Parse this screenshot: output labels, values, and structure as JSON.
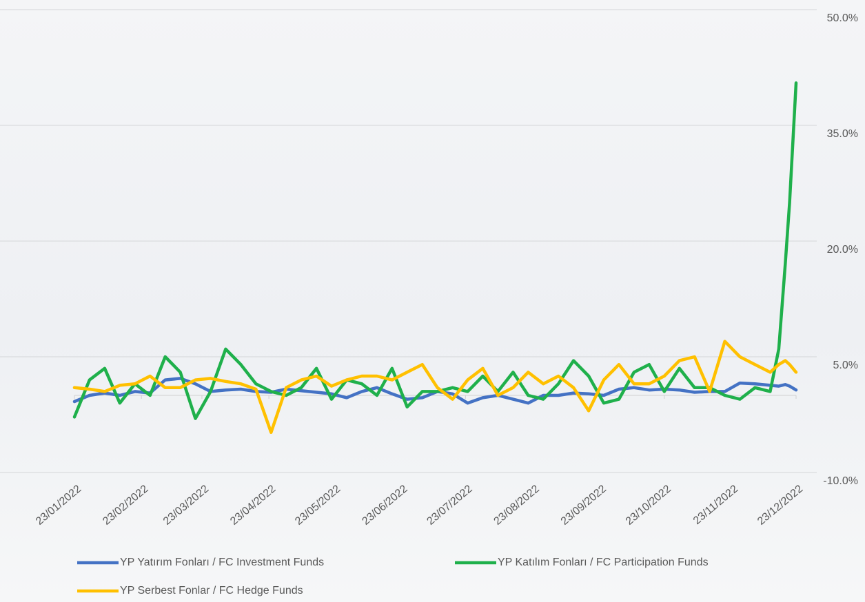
{
  "chart_data": {
    "type": "line",
    "x": [
      "23/01/2022",
      "30/01/2022",
      "06/02/2022",
      "13/02/2022",
      "20/02/2022",
      "27/02/2022",
      "06/03/2022",
      "13/03/2022",
      "20/03/2022",
      "27/03/2022",
      "03/04/2022",
      "10/04/2022",
      "17/04/2022",
      "24/04/2022",
      "01/05/2022",
      "08/05/2022",
      "15/05/2022",
      "22/05/2022",
      "29/05/2022",
      "05/06/2022",
      "12/06/2022",
      "19/06/2022",
      "26/06/2022",
      "03/07/2022",
      "10/07/2022",
      "17/07/2022",
      "24/07/2022",
      "31/07/2022",
      "07/08/2022",
      "14/08/2022",
      "21/08/2022",
      "28/08/2022",
      "04/09/2022",
      "11/09/2022",
      "18/09/2022",
      "25/09/2022",
      "02/10/2022",
      "09/10/2022",
      "16/10/2022",
      "23/10/2022",
      "30/10/2022",
      "06/11/2022",
      "13/11/2022",
      "20/11/2022",
      "27/11/2022",
      "04/12/2022",
      "11/12/2022",
      "15/12/2022",
      "18/12/2022",
      "20/12/2022",
      "23/12/2022"
    ],
    "xlim": [
      "23/01/2022",
      "23/12/2022"
    ],
    "xticks": [
      "23/01/2022",
      "23/02/2022",
      "23/03/2022",
      "23/04/2022",
      "23/05/2022",
      "23/06/2022",
      "23/07/2022",
      "23/08/2022",
      "23/09/2022",
      "23/10/2022",
      "23/11/2022",
      "23/12/2022"
    ],
    "ylim": [
      -10,
      50
    ],
    "yticks": [
      {
        "value": -10,
        "label": "-10.0%"
      },
      {
        "value": 5,
        "label": "5.0%"
      },
      {
        "value": 20,
        "label": "20.0%"
      },
      {
        "value": 35,
        "label": "35.0%"
      },
      {
        "value": 50,
        "label": "50.0%"
      }
    ],
    "grid": true,
    "legend": "bottom",
    "series": [
      {
        "name": "YP Yatırım Fonları / FC Investment Funds",
        "color": "#4472c4",
        "values": [
          -0.8,
          0,
          0.3,
          0,
          0.5,
          0.3,
          2,
          2.2,
          1.5,
          0.5,
          0.7,
          0.8,
          0.5,
          0.4,
          0.8,
          0.6,
          0.4,
          0.2,
          -0.3,
          0.5,
          1,
          0.2,
          -0.5,
          -0.3,
          0.5,
          0.2,
          -1,
          -0.3,
          0,
          -0.5,
          -1,
          0,
          0,
          0.3,
          0.2,
          0,
          0.8,
          1,
          0.7,
          0.8,
          0.7,
          0.4,
          0.5,
          0.5,
          1.6,
          1.5,
          1.3,
          1.2,
          1.4,
          1.2,
          0.7
        ]
      },
      {
        "name": "YP Katılım Fonları / FC Participation Funds",
        "color": "#1fb04b",
        "values": [
          -2.8,
          2,
          3.5,
          -1,
          1.5,
          0,
          5,
          3,
          -3,
          0.5,
          6,
          4,
          1.5,
          0.5,
          0,
          1,
          3.5,
          -0.5,
          2,
          1.5,
          0,
          3.5,
          -1.5,
          0.5,
          0.5,
          1,
          0.5,
          2.5,
          0.5,
          3,
          0,
          -0.5,
          1.5,
          4.5,
          2.5,
          -1,
          -0.5,
          3,
          4,
          0.5,
          3.5,
          1,
          1,
          0,
          -0.5,
          1,
          0.5,
          6,
          17,
          25,
          40.5
        ]
      },
      {
        "name": "YP Serbest Fonlar / FC Hedge Funds",
        "color": "#ffc000",
        "values": [
          1,
          0.8,
          0.5,
          1.3,
          1.5,
          2.5,
          1,
          1,
          2,
          2.2,
          1.8,
          1.5,
          0.8,
          -4.8,
          1,
          2,
          2.5,
          1.2,
          2,
          2.5,
          2.5,
          2,
          3,
          4,
          1,
          -0.5,
          2,
          3.5,
          0,
          1,
          3,
          1.5,
          2.5,
          1,
          -2,
          2,
          4,
          1.5,
          1.5,
          2.5,
          4.5,
          5,
          0.5,
          7,
          5,
          4,
          3,
          4,
          4.5,
          4,
          3
        ]
      }
    ]
  }
}
